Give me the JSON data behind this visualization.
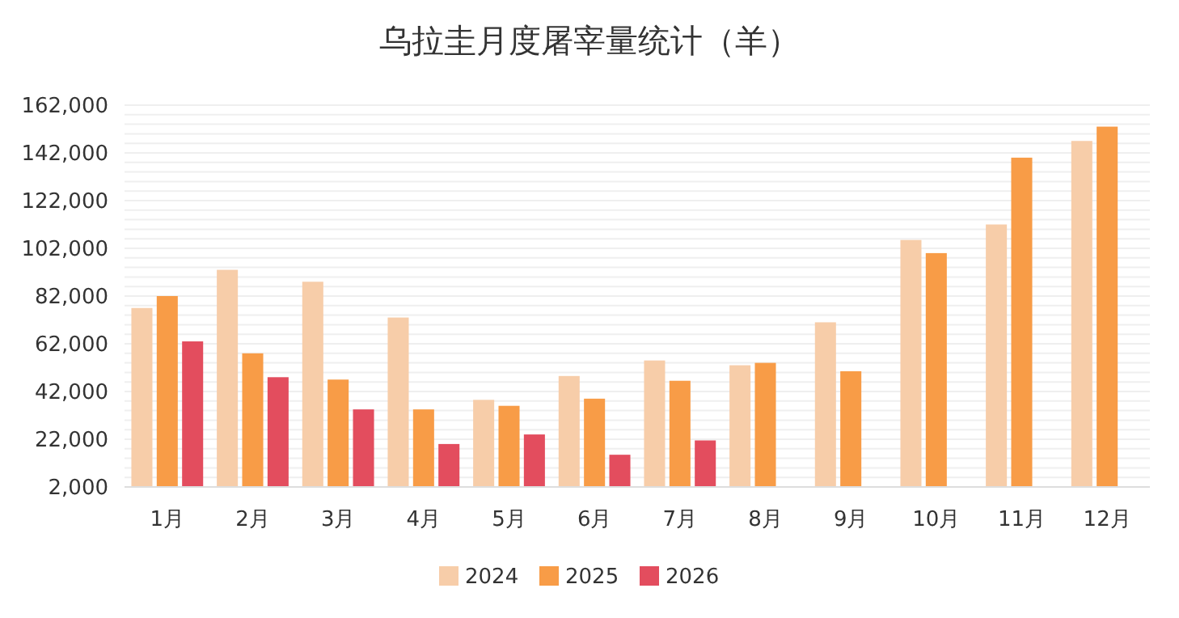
{
  "chart_data": {
    "type": "bar",
    "title": "乌拉圭月度屠宰量统计（羊）",
    "categories": [
      "1月",
      "2月",
      "3月",
      "4月",
      "5月",
      "6月",
      "7月",
      "8月",
      "9月",
      "10月",
      "11月",
      "12月"
    ],
    "series": [
      {
        "name": "2024",
        "color": "#f7cda9",
        "values": [
          77000,
          93000,
          88000,
          73000,
          38500,
          48500,
          55000,
          53000,
          71000,
          105500,
          112000,
          147000
        ]
      },
      {
        "name": "2025",
        "color": "#f89c47",
        "values": [
          82000,
          58000,
          47000,
          34500,
          36000,
          39000,
          46500,
          54000,
          50500,
          100000,
          140000,
          153000
        ]
      },
      {
        "name": "2026",
        "color": "#e34d5e",
        "values": [
          63000,
          48000,
          34500,
          20000,
          24000,
          15500,
          21500,
          null,
          null,
          null,
          null,
          null
        ]
      }
    ],
    "ylim": [
      2000,
      162000
    ],
    "yticks": [
      {
        "value": 2000,
        "label": "2,000"
      },
      {
        "value": 6000,
        "label": null
      },
      {
        "value": 10000,
        "label": null
      },
      {
        "value": 14000,
        "label": null
      },
      {
        "value": 18000,
        "label": null
      },
      {
        "value": 22000,
        "label": "22,000"
      },
      {
        "value": 26000,
        "label": null
      },
      {
        "value": 30000,
        "label": null
      },
      {
        "value": 34000,
        "label": null
      },
      {
        "value": 38000,
        "label": null
      },
      {
        "value": 42000,
        "label": "42,000"
      },
      {
        "value": 46000,
        "label": null
      },
      {
        "value": 50000,
        "label": null
      },
      {
        "value": 54000,
        "label": null
      },
      {
        "value": 58000,
        "label": null
      },
      {
        "value": 62000,
        "label": "62,000"
      },
      {
        "value": 66000,
        "label": null
      },
      {
        "value": 70000,
        "label": null
      },
      {
        "value": 74000,
        "label": null
      },
      {
        "value": 78000,
        "label": null
      },
      {
        "value": 82000,
        "label": "82,000"
      },
      {
        "value": 86000,
        "label": null
      },
      {
        "value": 90000,
        "label": null
      },
      {
        "value": 94000,
        "label": null
      },
      {
        "value": 98000,
        "label": null
      },
      {
        "value": 102000,
        "label": "102,000"
      },
      {
        "value": 106000,
        "label": null
      },
      {
        "value": 110000,
        "label": null
      },
      {
        "value": 114000,
        "label": null
      },
      {
        "value": 118000,
        "label": null
      },
      {
        "value": 122000,
        "label": "122,000"
      },
      {
        "value": 126000,
        "label": null
      },
      {
        "value": 130000,
        "label": null
      },
      {
        "value": 134000,
        "label": null
      },
      {
        "value": 138000,
        "label": null
      },
      {
        "value": 142000,
        "label": "142,000"
      },
      {
        "value": 146000,
        "label": null
      },
      {
        "value": 150000,
        "label": null
      },
      {
        "value": 154000,
        "label": null
      },
      {
        "value": 158000,
        "label": null
      },
      {
        "value": 162000,
        "label": "162,000"
      }
    ],
    "grid": true,
    "legend": "bottom"
  }
}
